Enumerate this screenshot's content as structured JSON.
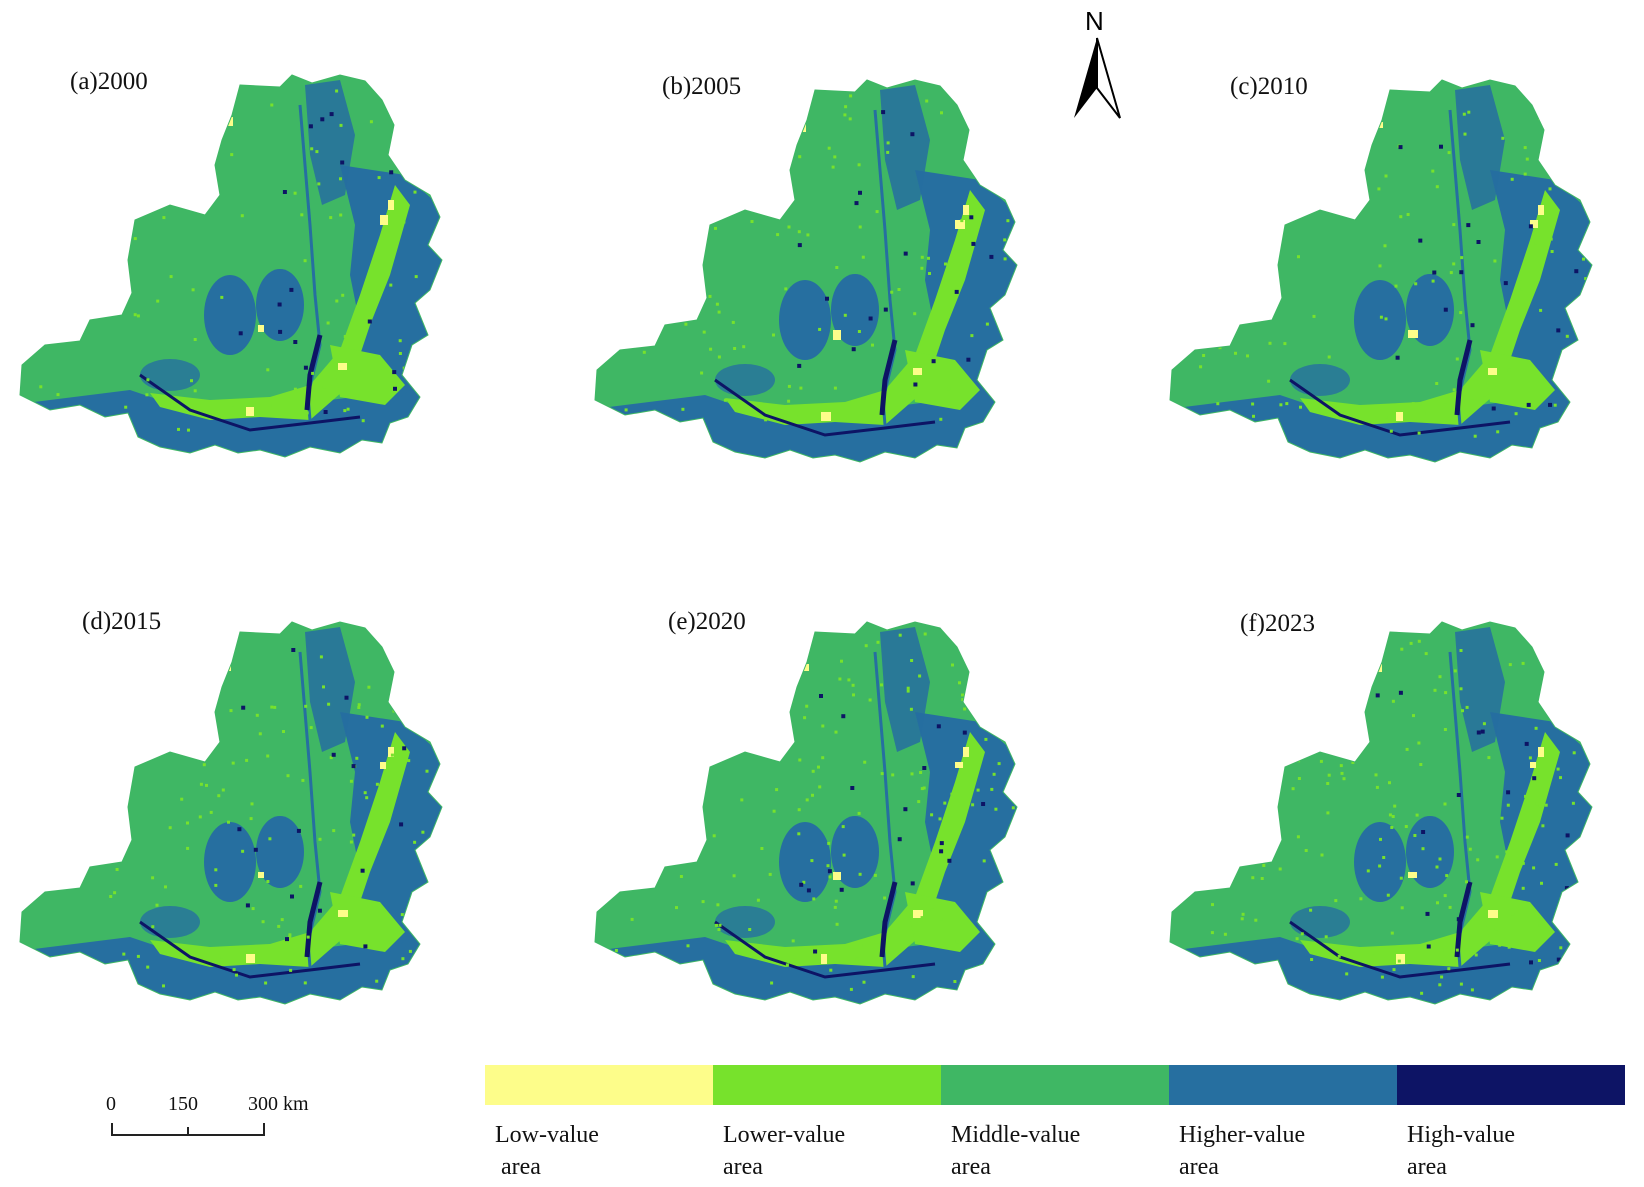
{
  "figure": {
    "panels": [
      {
        "label": "(a)2000"
      },
      {
        "label": "(b)2005"
      },
      {
        "label": "(c)2010"
      },
      {
        "label": "(d)2015"
      },
      {
        "label": "(e)2020"
      },
      {
        "label": "(f)2023"
      }
    ],
    "north_arrow": {
      "letter": "N"
    },
    "scale_bar": {
      "ticks": [
        "0",
        "150",
        "300 km"
      ]
    },
    "legend": [
      {
        "line1": "Low-value",
        "line2": " area",
        "color": "#fdfd8a"
      },
      {
        "line1": "Lower-value",
        "line2": "area",
        "color": "#77e22c"
      },
      {
        "line1": "Middle-value",
        "line2": "area",
        "color": "#3fb764"
      },
      {
        "line1": "Higher-value",
        "line2": "area",
        "color": "#266fa0"
      },
      {
        "line1": "High-value",
        "line2": "area",
        "color": "#0d1465"
      }
    ],
    "colors": {
      "low": "#fdfd8a",
      "lower": "#77e22c",
      "middle": "#3fb764",
      "higher": "#266fa0",
      "high": "#0d1465"
    }
  }
}
